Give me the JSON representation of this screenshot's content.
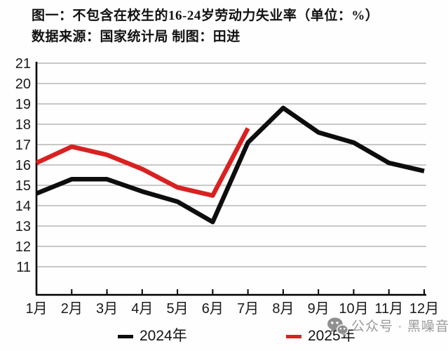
{
  "chart_data": {
    "type": "line",
    "title": "图一：不包含在校生的16-24岁劳动力失业率（单位：%）",
    "subtitle": "数据来源：国家统计局 制图：田进",
    "categories": [
      "1月",
      "2月",
      "3月",
      "4月",
      "5月",
      "6月",
      "7月",
      "8月",
      "9月",
      "10月",
      "11月",
      "12月"
    ],
    "series": [
      {
        "name": "2024年",
        "color": "#0d0d0d",
        "values": [
          14.6,
          15.3,
          15.3,
          14.7,
          14.2,
          13.2,
          17.1,
          18.8,
          17.6,
          17.1,
          16.1,
          15.7
        ]
      },
      {
        "name": "2025年",
        "color": "#d92121",
        "values": [
          16.1,
          16.9,
          16.5,
          15.8,
          14.9,
          14.5,
          17.8
        ]
      }
    ],
    "ylim": [
      11,
      21
    ],
    "y_ticks": [
      11,
      12,
      13,
      14,
      15,
      16,
      17,
      18,
      19,
      20,
      21
    ],
    "xlabel": "",
    "ylabel": "",
    "grid": true,
    "legend_position": "bottom",
    "grid_color": "#a8a8a8",
    "axis_color": "#000000",
    "tick_label_color": "#1a1a1a"
  },
  "watermark": {
    "icon": "wechat-icon",
    "text": "公众号 · 黑噪音",
    "color": "#9a9a9a"
  }
}
